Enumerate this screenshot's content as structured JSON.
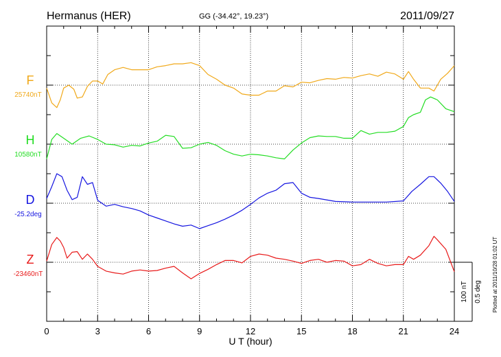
{
  "header": {
    "station": "Hermanus (HER)",
    "coords": "GG (-34.42°,  19.23°)",
    "date": "2011/09/27"
  },
  "footer": {
    "xlabel": "U T (hour)",
    "plotted": "Plotted at 2011/10/28 01:02 UT"
  },
  "scale": {
    "nt": "100 nT",
    "deg": "0.5 deg"
  },
  "chart_data": {
    "type": "line",
    "title": "Hermanus (HER)",
    "subtitle": "GG (-34.42°,  19.23°)",
    "xlabel": "U T (hour)",
    "xlim": [
      0,
      24
    ],
    "xticks": [
      0,
      3,
      6,
      9,
      12,
      15,
      18,
      21,
      24
    ],
    "grid": true,
    "series": [
      {
        "name": "F",
        "baseline_label": "25740nT",
        "color": "#f0a818",
        "units": "offset from baseline, divisions of 100 nT",
        "x": [
          0,
          0.3,
          0.6,
          0.8,
          1,
          1.3,
          1.6,
          1.8,
          2.1,
          2.4,
          2.7,
          3,
          3.3,
          3.6,
          4,
          4.5,
          5,
          5.5,
          6,
          6.5,
          7,
          7.5,
          8,
          8.5,
          9,
          9.5,
          10,
          10.5,
          11,
          11.5,
          12,
          12.5,
          13,
          13.5,
          14,
          14.5,
          15,
          15.5,
          16,
          16.5,
          17,
          17.5,
          18,
          18.5,
          19,
          19.5,
          20,
          20.5,
          21,
          21.3,
          21.6,
          22,
          22.5,
          22.8,
          23.2,
          23.6,
          24
        ],
        "y": [
          -0.05,
          -0.3,
          -0.38,
          -0.25,
          -0.05,
          0,
          -0.07,
          -0.22,
          -0.2,
          -0.02,
          0.07,
          0.07,
          0.02,
          0.18,
          0.26,
          0.3,
          0.26,
          0.26,
          0.26,
          0.31,
          0.33,
          0.36,
          0.36,
          0.38,
          0.33,
          0.18,
          0.1,
          0,
          -0.05,
          -0.15,
          -0.17,
          -0.17,
          -0.1,
          -0.1,
          -0.01,
          -0.03,
          0.05,
          0.04,
          0.08,
          0.11,
          0.1,
          0.13,
          0.12,
          0.16,
          0.19,
          0.15,
          0.22,
          0.19,
          0.1,
          0.23,
          0.1,
          -0.05,
          -0.05,
          -0.1,
          0.1,
          0.2,
          0.33
        ]
      },
      {
        "name": "H",
        "baseline_label": "10580nT",
        "color": "#22dd22",
        "units": "offset from baseline, divisions of 100 nT",
        "x": [
          0,
          0.3,
          0.6,
          1,
          1.5,
          2,
          2.5,
          3,
          3.5,
          4,
          4.5,
          5,
          5.5,
          6,
          6.5,
          7,
          7.5,
          8,
          8.5,
          9,
          9.5,
          10,
          10.5,
          11,
          11.5,
          12,
          12.5,
          13,
          13.5,
          14,
          14.5,
          15,
          15.5,
          16,
          16.5,
          17,
          17.5,
          18,
          18.5,
          19,
          19.5,
          20,
          20.5,
          21,
          21.3,
          21.6,
          22,
          22.3,
          22.6,
          23,
          23.5,
          24
        ],
        "y": [
          -0.25,
          0.08,
          0.18,
          0.1,
          0,
          0.1,
          0.14,
          0.08,
          0,
          -0.01,
          -0.05,
          -0.02,
          -0.03,
          0.02,
          0.05,
          0.15,
          0.13,
          -0.07,
          -0.06,
          0,
          0.03,
          -0.02,
          -0.11,
          -0.17,
          -0.2,
          -0.17,
          -0.18,
          -0.2,
          -0.23,
          -0.25,
          -0.1,
          0.02,
          0.11,
          0.14,
          0.13,
          0.13,
          0.1,
          0.1,
          0.23,
          0.17,
          0.2,
          0.2,
          0.22,
          0.3,
          0.45,
          0.5,
          0.54,
          0.75,
          0.8,
          0.75,
          0.6,
          0.55
        ]
      },
      {
        "name": "D",
        "baseline_label": "-25.2deg",
        "color": "#1414e0",
        "units": "offset from baseline, divisions of 0.5 deg",
        "x": [
          0,
          0.3,
          0.6,
          0.9,
          1.2,
          1.5,
          1.8,
          2.1,
          2.4,
          2.7,
          3,
          3.5,
          4,
          4.5,
          5,
          5.5,
          6,
          6.5,
          7,
          7.5,
          8,
          8.5,
          9,
          9.5,
          10,
          10.5,
          11,
          11.5,
          12,
          12.5,
          13,
          13.5,
          14,
          14.5,
          15,
          15.5,
          16,
          17,
          18,
          19,
          20,
          21,
          21.5,
          22,
          22.5,
          22.8,
          23.2,
          23.6,
          24
        ],
        "y": [
          0.08,
          0.28,
          0.5,
          0.45,
          0.22,
          0.06,
          0.1,
          0.45,
          0.32,
          0.35,
          0.05,
          -0.05,
          -0.02,
          -0.06,
          -0.09,
          -0.13,
          -0.2,
          -0.25,
          -0.3,
          -0.35,
          -0.39,
          -0.37,
          -0.43,
          -0.38,
          -0.33,
          -0.27,
          -0.2,
          -0.12,
          -0.02,
          0.09,
          0.17,
          0.22,
          0.33,
          0.35,
          0.17,
          0.1,
          0.08,
          0.03,
          0.02,
          0.02,
          0.02,
          0.04,
          0.2,
          0.32,
          0.45,
          0.45,
          0.34,
          0.2,
          0.03
        ]
      },
      {
        "name": "Z",
        "baseline_label": "-23460nT",
        "color": "#e81818",
        "units": "offset from baseline, divisions of 100 nT",
        "x": [
          0,
          0.3,
          0.6,
          0.8,
          1,
          1.2,
          1.5,
          1.8,
          2.1,
          2.4,
          2.7,
          3,
          3.5,
          4,
          4.5,
          5,
          5.5,
          6,
          6.5,
          7,
          7.5,
          8,
          8.5,
          9,
          9.5,
          10,
          10.5,
          11,
          11.5,
          12,
          12.5,
          13,
          13.5,
          14,
          14.5,
          15,
          15.5,
          16,
          16.5,
          17,
          17.5,
          18,
          18.5,
          19,
          19.5,
          20,
          20.5,
          21,
          21.3,
          21.6,
          22,
          22.5,
          22.8,
          23,
          23.5,
          24
        ],
        "y": [
          0.02,
          0.3,
          0.42,
          0.36,
          0.25,
          0.07,
          0.17,
          0.18,
          0.05,
          0.14,
          0.05,
          -0.07,
          -0.15,
          -0.18,
          -0.2,
          -0.15,
          -0.13,
          -0.15,
          -0.14,
          -0.1,
          -0.07,
          -0.18,
          -0.28,
          -0.19,
          -0.12,
          -0.04,
          0.03,
          0.03,
          -0.01,
          0.1,
          0.14,
          0.12,
          0.07,
          0.05,
          0.02,
          -0.02,
          0.03,
          0.05,
          0.0,
          0.03,
          0.02,
          -0.06,
          -0.04,
          0.05,
          -0.02,
          -0.06,
          -0.04,
          -0.04,
          0.1,
          0.05,
          0.12,
          0.28,
          0.44,
          0.38,
          0.22,
          -0.16
        ]
      }
    ]
  }
}
